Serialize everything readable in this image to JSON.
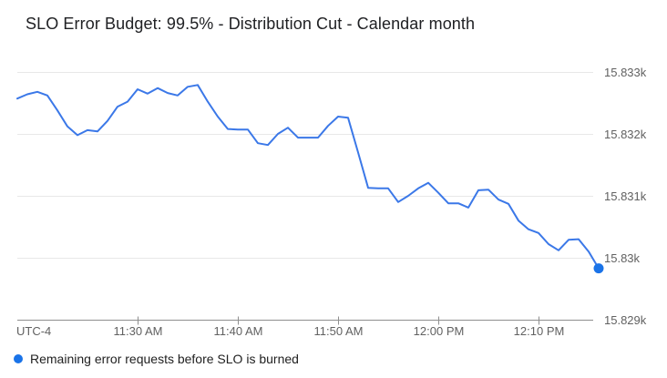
{
  "chart_data": {
    "type": "line",
    "title": "SLO Error Budget: 99.5% - Distribution Cut - Calendar month",
    "grid": true,
    "legend_position": "bottom-left",
    "colors": {
      "line": "#3b78e8",
      "end_dot": "#1a73e8",
      "gridline": "#e8e8e8",
      "axis": "#8f8f8f",
      "tick_text": "#616161"
    },
    "y_axis": {
      "side": "right",
      "range": [
        15829,
        15833.2
      ],
      "ticks": [
        {
          "label": "15.833k",
          "value": 15833,
          "axis": false
        },
        {
          "label": "15.832k",
          "value": 15832,
          "axis": false
        },
        {
          "label": "15.831k",
          "value": 15831,
          "axis": false
        },
        {
          "label": "15.83k",
          "value": 15830,
          "axis": false
        },
        {
          "label": "15.829k",
          "value": 15829,
          "axis": true
        }
      ]
    },
    "x_axis": {
      "utc_label": "UTC-4",
      "ticks": [
        {
          "label": "11:30 AM",
          "index": 12
        },
        {
          "label": "11:40 AM",
          "index": 22
        },
        {
          "label": "11:50 AM",
          "index": 32
        },
        {
          "label": "12:00 PM",
          "index": 42
        },
        {
          "label": "12:10 PM",
          "index": 52
        }
      ]
    },
    "series": [
      {
        "name": "Remaining error requests before SLO is burned",
        "color": "#3b78e8",
        "end_dot_color": "#1a73e8",
        "times": [
          "11:18 AM",
          "11:19 AM",
          "11:20 AM",
          "11:21 AM",
          "11:22 AM",
          "11:23 AM",
          "11:24 AM",
          "11:25 AM",
          "11:26 AM",
          "11:27 AM",
          "11:28 AM",
          "11:29 AM",
          "11:30 AM",
          "11:31 AM",
          "11:32 AM",
          "11:33 AM",
          "11:34 AM",
          "11:35 AM",
          "11:36 AM",
          "11:37 AM",
          "11:38 AM",
          "11:39 AM",
          "11:40 AM",
          "11:41 AM",
          "11:42 AM",
          "11:43 AM",
          "11:44 AM",
          "11:45 AM",
          "11:46 AM",
          "11:47 AM",
          "11:48 AM",
          "11:49 AM",
          "11:50 AM",
          "11:51 AM",
          "11:52 AM",
          "11:53 AM",
          "11:54 AM",
          "11:55 AM",
          "11:56 AM",
          "11:57 AM",
          "11:58 AM",
          "11:59 AM",
          "12:00 PM",
          "12:01 PM",
          "12:02 PM",
          "12:03 PM",
          "12:04 PM",
          "12:05 PM",
          "12:06 PM",
          "12:07 PM",
          "12:08 PM",
          "12:09 PM",
          "12:10 PM",
          "12:11 PM",
          "12:12 PM",
          "12:13 PM",
          "12:14 PM",
          "12:15 PM",
          "12:16 PM"
        ],
        "values": [
          15832.57,
          15832.64,
          15832.68,
          15832.62,
          15832.38,
          15832.12,
          15831.98,
          15832.06,
          15832.04,
          15832.21,
          15832.44,
          15832.52,
          15832.72,
          15832.65,
          15832.74,
          15832.66,
          15832.62,
          15832.76,
          15832.79,
          15832.52,
          15832.28,
          15832.08,
          15832.07,
          15832.07,
          15831.85,
          15831.82,
          15832.0,
          15832.1,
          15831.94,
          15831.94,
          15831.94,
          15832.13,
          15832.28,
          15832.26,
          15831.7,
          15831.13,
          15831.12,
          15831.12,
          15830.9,
          15831.0,
          15831.12,
          15831.21,
          15831.05,
          15830.88,
          15830.88,
          15830.81,
          15831.09,
          15831.1,
          15830.94,
          15830.87,
          15830.6,
          15830.46,
          15830.4,
          15830.22,
          15830.12,
          15830.29,
          15830.3,
          15830.1,
          15829.83
        ]
      }
    ]
  }
}
